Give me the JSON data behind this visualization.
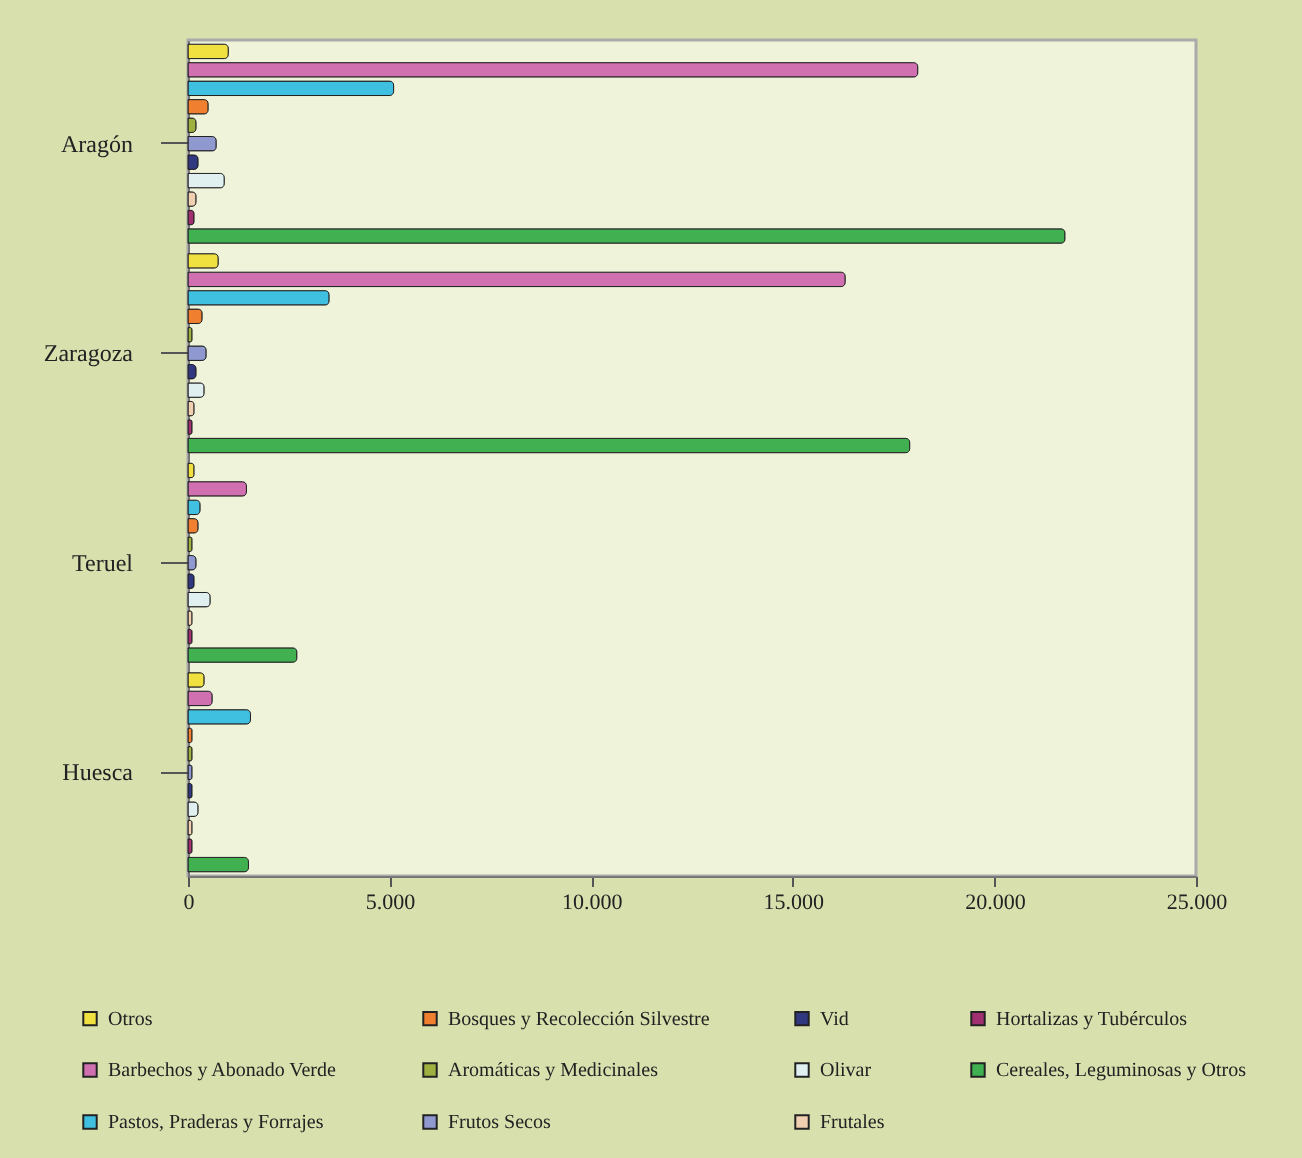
{
  "chart_data": {
    "type": "bar",
    "orientation": "horizontal",
    "categories": [
      "Aragón",
      "Zaragoza",
      "Teruel",
      "Huesca"
    ],
    "series": [
      {
        "name": "Otros",
        "color": "#f0e040",
        "values": [
          1000,
          750,
          150,
          400
        ]
      },
      {
        "name": "Barbechos y Abonado Verde",
        "color": "#d070b0",
        "values": [
          18100,
          16300,
          1450,
          600
        ]
      },
      {
        "name": "Pastos, Praderas y Forrajes",
        "color": "#40c0e0",
        "values": [
          5100,
          3500,
          300,
          1550
        ]
      },
      {
        "name": "Bosques y Recolección Silvestre",
        "color": "#f08030",
        "values": [
          500,
          350,
          250,
          100
        ]
      },
      {
        "name": "Aromáticas y Medicinales",
        "color": "#a0b040",
        "values": [
          200,
          100,
          100,
          100
        ]
      },
      {
        "name": "Frutos Secos",
        "color": "#9098d0",
        "values": [
          700,
          450,
          200,
          100
        ]
      },
      {
        "name": "Vid",
        "color": "#303880",
        "values": [
          250,
          200,
          150,
          100
        ]
      },
      {
        "name": "Olivar",
        "color": "#e0f0f0",
        "values": [
          900,
          400,
          550,
          250
        ]
      },
      {
        "name": "Frutales",
        "color": "#f0d0b0",
        "values": [
          200,
          150,
          100,
          100
        ]
      },
      {
        "name": "Hortalizas y Tubérculos",
        "color": "#a03070",
        "values": [
          150,
          100,
          100,
          100
        ]
      },
      {
        "name": "Cereales, Leguminosas y Otros",
        "color": "#40b050",
        "values": [
          21750,
          17900,
          2700,
          1500
        ]
      }
    ],
    "xlim": [
      0,
      25000
    ],
    "xticks": [
      0,
      {
        "value": 5000,
        "label": "5.000"
      },
      {
        "value": 10000,
        "label": "10.000"
      },
      {
        "value": 15000,
        "label": "15.000"
      },
      {
        "value": 20000,
        "label": "20.000"
      },
      {
        "value": 25000,
        "label": "25.000"
      }
    ],
    "grid": false,
    "legend": "bottom"
  }
}
